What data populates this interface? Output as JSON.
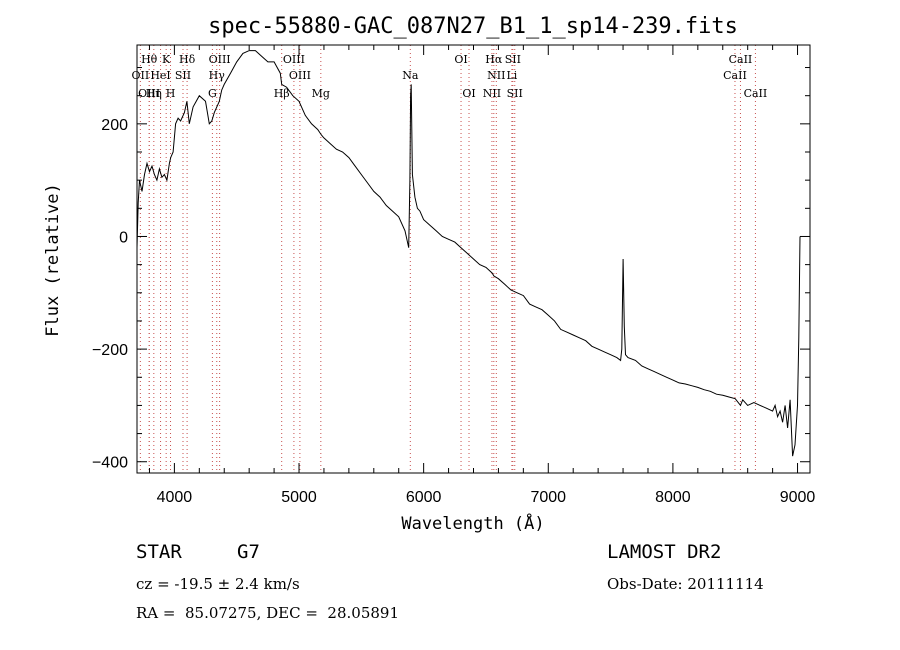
{
  "chart_data": {
    "type": "line",
    "title": "spec-55880-GAC_087N27_B1_1_sp14-239.fits",
    "xlabel": "Wavelength (Å)",
    "ylabel": "Flux (relative)",
    "xlim": [
      3700,
      9100
    ],
    "ylim": [
      -420,
      340
    ],
    "xticks": [
      4000,
      5000,
      6000,
      7000,
      8000,
      9000
    ],
    "yticks": [
      -400,
      -200,
      0,
      200
    ],
    "x_minor_step": 200,
    "y_minor_step": 50,
    "series": [
      {
        "color": "#000000",
        "x": [
          3700,
          3710,
          3720,
          3740,
          3760,
          3780,
          3800,
          3820,
          3840,
          3860,
          3880,
          3900,
          3920,
          3940,
          3960,
          3970,
          3990,
          4010,
          4030,
          4050,
          4080,
          4100,
          4120,
          4150,
          4200,
          4250,
          4280,
          4300,
          4320,
          4340,
          4360,
          4380,
          4400,
          4450,
          4500,
          4550,
          4600,
          4650,
          4700,
          4750,
          4800,
          4850,
          4861,
          4900,
          4950,
          5000,
          5050,
          5100,
          5150,
          5180,
          5200,
          5250,
          5300,
          5350,
          5400,
          5450,
          5500,
          5550,
          5600,
          5650,
          5700,
          5750,
          5800,
          5850,
          5880,
          5890,
          5895,
          5900,
          5910,
          5930,
          5950,
          5970,
          6000,
          6050,
          6100,
          6150,
          6200,
          6250,
          6300,
          6350,
          6400,
          6450,
          6500,
          6550,
          6563,
          6600,
          6650,
          6700,
          6750,
          6800,
          6850,
          6900,
          6950,
          7000,
          7050,
          7100,
          7150,
          7200,
          7250,
          7300,
          7350,
          7400,
          7450,
          7500,
          7550,
          7580,
          7590,
          7600,
          7610,
          7620,
          7640,
          7700,
          7750,
          7800,
          7850,
          7900,
          7950,
          8000,
          8050,
          8100,
          8150,
          8200,
          8250,
          8300,
          8350,
          8400,
          8450,
          8500,
          8542,
          8560,
          8600,
          8650,
          8700,
          8750,
          8800,
          8820,
          8840,
          8860,
          8880,
          8900,
          8920,
          8940,
          8960,
          8980,
          9000,
          9010,
          9020
        ],
        "y": [
          -20,
          60,
          100,
          80,
          110,
          130,
          115,
          125,
          110,
          100,
          120,
          105,
          110,
          100,
          130,
          140,
          150,
          200,
          210,
          205,
          220,
          240,
          200,
          230,
          250,
          240,
          200,
          205,
          220,
          230,
          240,
          260,
          270,
          290,
          310,
          325,
          330,
          330,
          320,
          310,
          310,
          290,
          270,
          265,
          250,
          240,
          215,
          200,
          190,
          180,
          175,
          165,
          155,
          150,
          140,
          125,
          110,
          95,
          80,
          70,
          55,
          45,
          35,
          10,
          -20,
          100,
          250,
          270,
          110,
          70,
          50,
          45,
          30,
          20,
          10,
          0,
          -5,
          -10,
          -20,
          -30,
          -40,
          -50,
          -55,
          -65,
          -70,
          -75,
          -85,
          -95,
          -100,
          -105,
          -120,
          -125,
          -130,
          -140,
          -150,
          -165,
          -170,
          -175,
          -180,
          -185,
          -195,
          -200,
          -205,
          -210,
          -215,
          -220,
          -200,
          -40,
          -160,
          -210,
          -215,
          -220,
          -230,
          -235,
          -240,
          -245,
          -250,
          -255,
          -260,
          -262,
          -265,
          -268,
          -272,
          -275,
          -280,
          -282,
          -285,
          -288,
          -300,
          -290,
          -300,
          -295,
          -300,
          -305,
          -310,
          -300,
          -320,
          -310,
          -330,
          -300,
          -340,
          -290,
          -390,
          -370,
          -300,
          -180,
          0
        ]
      }
    ],
    "line_groups": [
      {
        "label": "OII",
        "lines": [
          3727
        ],
        "row": 2
      },
      {
        "label": "Hθ",
        "lines": [
          3798
        ],
        "row": 1
      },
      {
        "label": "OIII",
        "lines": [
          3798
        ],
        "row": 3
      },
      {
        "label": "Hη",
        "lines": [
          3835
        ],
        "row": 3
      },
      {
        "label": "HeI",
        "lines": [
          3889
        ],
        "row": 2
      },
      {
        "label": "K",
        "lines": [
          3934
        ],
        "row": 1
      },
      {
        "label": "SII",
        "lines": [
          4069
        ],
        "row": 2
      },
      {
        "label": "H",
        "lines": [
          3969
        ],
        "row": 3
      },
      {
        "label": "Hδ",
        "lines": [
          4102
        ],
        "row": 1
      },
      {
        "label": "OIII",
        "lines": [
          4363
        ],
        "row": 1
      },
      {
        "label": "Hγ",
        "lines": [
          4340
        ],
        "row": 2
      },
      {
        "label": "G",
        "lines": [
          4305
        ],
        "row": 3
      },
      {
        "label": "OIII",
        "lines": [
          4959
        ],
        "row": 1
      },
      {
        "label": "OIII",
        "lines": [
          5007
        ],
        "row": 2
      },
      {
        "label": "Hβ",
        "lines": [
          4861
        ],
        "row": 3
      },
      {
        "label": "Mg",
        "lines": [
          5175
        ],
        "row": 3
      },
      {
        "label": "Na",
        "lines": [
          5893
        ],
        "row": 2
      },
      {
        "label": "OI",
        "lines": [
          6300
        ],
        "row": 1
      },
      {
        "label": "OI",
        "lines": [
          6364
        ],
        "row": 3
      },
      {
        "label": "Hα",
        "lines": [
          6563
        ],
        "row": 1
      },
      {
        "label": "SII",
        "lines": [
          6716
        ],
        "row": 1
      },
      {
        "label": "NII",
        "lines": [
          6583
        ],
        "row": 2
      },
      {
        "label": "Li",
        "lines": [
          6708
        ],
        "row": 2
      },
      {
        "label": "NII",
        "lines": [
          6548
        ],
        "row": 3
      },
      {
        "label": "SII",
        "lines": [
          6731
        ],
        "row": 3
      },
      {
        "label": "CaII",
        "lines": [
          8542
        ],
        "row": 1
      },
      {
        "label": "CaII",
        "lines": [
          8498
        ],
        "row": 2
      },
      {
        "label": "CaII",
        "lines": [
          8662
        ],
        "row": 3
      }
    ]
  },
  "info": {
    "object_class": "STAR",
    "subclass": "G7",
    "survey": "LAMOST DR2",
    "redshift": "cz = -19.5 ± 2.4 km/s",
    "obs_date": "Obs-Date: 20111114",
    "coords": "RA =  85.07275, DEC =  28.05891"
  }
}
